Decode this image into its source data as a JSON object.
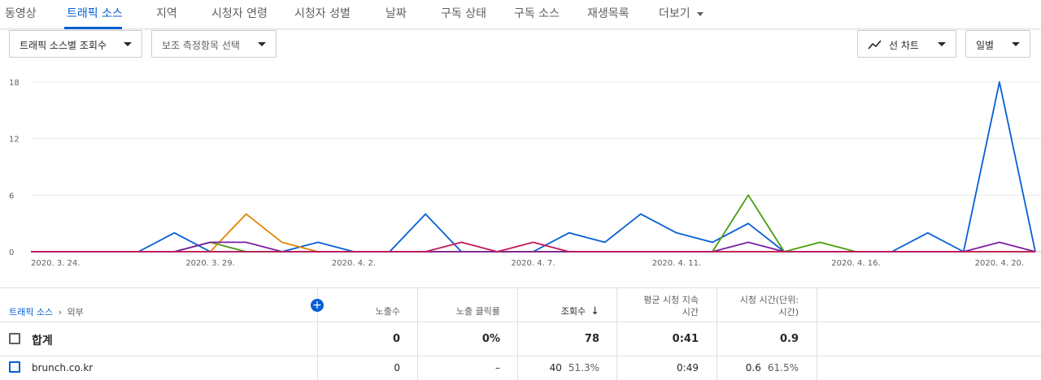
{
  "tabs": [
    {
      "label": "동영상",
      "active": false
    },
    {
      "label": "트래픽 소스",
      "active": true
    },
    {
      "label": "지역",
      "active": false
    },
    {
      "label": "시청자 연령",
      "active": false
    },
    {
      "label": "시청자 성별",
      "active": false
    },
    {
      "label": "날짜",
      "active": false
    },
    {
      "label": "구독 상태",
      "active": false
    },
    {
      "label": "구독 소스",
      "active": false
    },
    {
      "label": "재생목록",
      "active": false
    },
    {
      "label": "더보기",
      "active": false
    }
  ],
  "controls": {
    "metric_select": "트래픽 소스별 조회수",
    "secondary_metric_select": "보조 측정항목 선택",
    "chart_type_select": "선 차트",
    "interval_select": "일별"
  },
  "chart_data": {
    "type": "line",
    "ylim": [
      0,
      18
    ],
    "yticks": [
      "18",
      "12",
      "6",
      "0"
    ],
    "x": [
      "2020. 3. 24.",
      "3.25",
      "3.26",
      "3.27",
      "3.28",
      "2020. 3. 29.",
      "3.30",
      "3.31",
      "4.1",
      "2020. 4. 2.",
      "4.3",
      "4.4",
      "4.5",
      "4.6",
      "2020. 4. 7.",
      "4.8",
      "4.9",
      "4.10",
      "2020. 4. 11.",
      "4.12",
      "4.13",
      "4.14",
      "4.15",
      "2020. 4. 16.",
      "4.17",
      "4.18",
      "4.19",
      "2020. 4. 20.",
      "4.21"
    ],
    "xtick_labels": [
      "2020. 3. 24.",
      "2020. 3. 29.",
      "2020. 4. 2.",
      "2020. 4. 7.",
      "2020. 4. 11.",
      "2020. 4. 16.",
      "2020. 4. 20."
    ],
    "grid": true,
    "series": [
      {
        "color": "#065fd4",
        "values": [
          0,
          0,
          0,
          0,
          2,
          0,
          0,
          0,
          1,
          0,
          0,
          4,
          0,
          0,
          0,
          2,
          1,
          4,
          2,
          1,
          3,
          0,
          0,
          0,
          0,
          2,
          0,
          18,
          0
        ]
      },
      {
        "color": "#4a9c0c",
        "values": [
          0,
          0,
          0,
          0,
          0,
          1,
          0,
          0,
          0,
          0,
          0,
          0,
          0,
          0,
          0,
          0,
          0,
          0,
          0,
          0,
          6,
          0,
          1,
          0,
          0,
          0,
          0,
          0,
          0
        ]
      },
      {
        "color": "#e08600",
        "values": [
          0,
          0,
          0,
          0,
          0,
          0,
          4,
          1,
          0,
          0,
          0,
          0,
          0,
          0,
          0,
          0,
          0,
          0,
          0,
          0,
          0,
          0,
          0,
          0,
          0,
          0,
          0,
          0,
          0
        ]
      },
      {
        "color": "#7b1fa2",
        "values": [
          0,
          0,
          0,
          0,
          0,
          1,
          1,
          0,
          0,
          0,
          0,
          0,
          0,
          0,
          0,
          0,
          0,
          0,
          0,
          0,
          1,
          0,
          0,
          0,
          0,
          0,
          0,
          1,
          0
        ]
      },
      {
        "color": "#c2185b",
        "values": [
          0,
          0,
          0,
          0,
          0,
          0,
          0,
          0,
          0,
          0,
          0,
          0,
          1,
          0,
          1,
          0,
          0,
          0,
          0,
          0,
          0,
          0,
          0,
          0,
          0,
          0,
          0,
          0,
          0
        ]
      }
    ]
  },
  "table": {
    "breadcrumb_root": "트래픽 소스",
    "breadcrumb_sep": "›",
    "breadcrumb_current": "외부",
    "add_icon": "+",
    "columns": {
      "impressions": "노출수",
      "ctr": "노출 클릭률",
      "views": "조회수",
      "avg_view_duration_1": "평균 시청 지속",
      "avg_view_duration_2": "시간",
      "watch_time_1": "시청 시간(단위:",
      "watch_time_2": "시간)"
    },
    "sort_arrow": "↓",
    "total": {
      "label": "합계",
      "impressions": "0",
      "ctr": "0%",
      "views": "78",
      "avg_view_duration": "0:41",
      "watch_time": "0.9"
    },
    "rows": [
      {
        "label": "brunch.co.kr",
        "impressions": "0",
        "ctr": "–",
        "views": "40",
        "views_pct": "51.3%",
        "avg_view_duration": "0:49",
        "watch_time": "0.6",
        "watch_time_pct": "61.5%",
        "checkbox_color": "#065fd4"
      }
    ]
  }
}
